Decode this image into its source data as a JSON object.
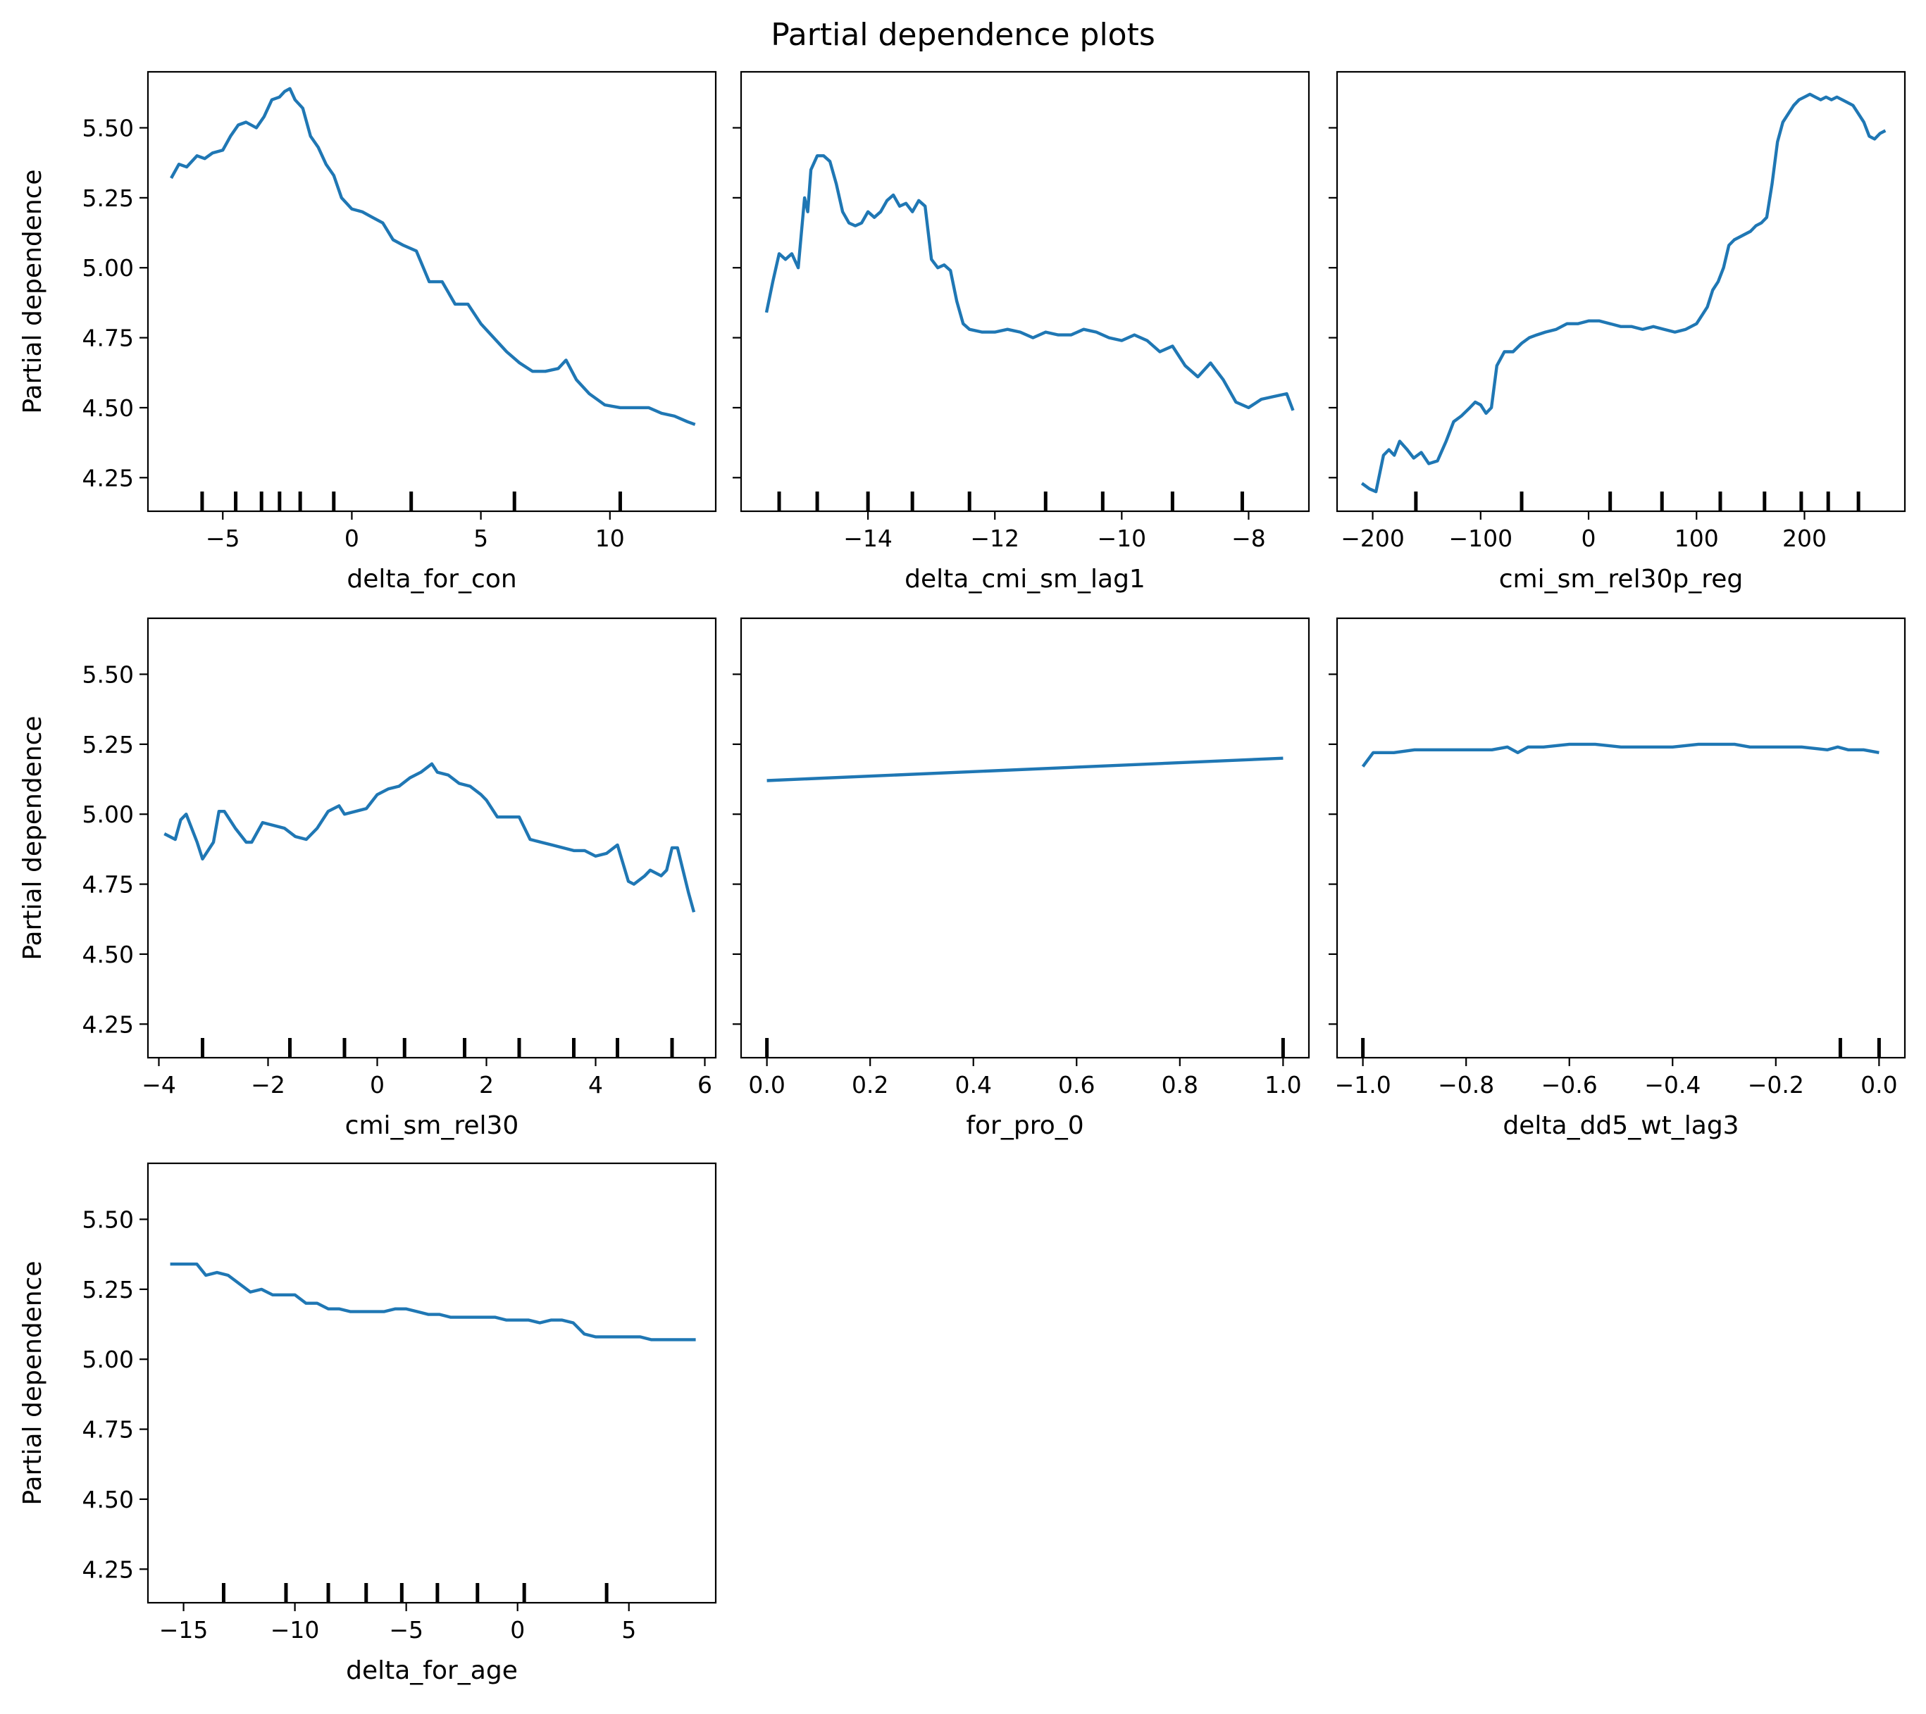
{
  "title": "Partial dependence plots",
  "colors": {
    "line": "#1f77b4",
    "axis": "#000000",
    "background": "#ffffff"
  },
  "chart_data": [
    {
      "type": "line",
      "xlabel": "delta_for_con",
      "ylabel": "Partial dependence",
      "xlim": [
        -7.9,
        14.1
      ],
      "ylim": [
        4.13,
        5.7
      ],
      "xticks": [
        -5,
        0,
        5,
        10
      ],
      "xtick_labels": [
        "−5",
        "0",
        "5",
        "10"
      ],
      "yticks": [
        4.25,
        4.5,
        4.75,
        5.0,
        5.25,
        5.5
      ],
      "ytick_labels": [
        "4.25",
        "4.50",
        "4.75",
        "5.00",
        "5.25",
        "5.50"
      ],
      "deciles": [
        -5.8,
        -4.5,
        -3.5,
        -2.8,
        -2.0,
        -0.7,
        2.3,
        6.3,
        10.4
      ],
      "x": [
        -7.0,
        -6.7,
        -6.4,
        -6.0,
        -5.7,
        -5.4,
        -5.0,
        -4.7,
        -4.4,
        -4.1,
        -3.7,
        -3.4,
        -3.1,
        -2.8,
        -2.6,
        -2.4,
        -2.2,
        -1.9,
        -1.6,
        -1.3,
        -1.0,
        -0.7,
        -0.4,
        0.0,
        0.4,
        0.8,
        1.2,
        1.6,
        2.0,
        2.5,
        3.0,
        3.5,
        4.0,
        4.5,
        5.0,
        5.5,
        6.0,
        6.5,
        7.0,
        7.5,
        8.0,
        8.3,
        8.7,
        9.2,
        9.8,
        10.4,
        11.0,
        11.5,
        12.0,
        12.5,
        13.0,
        13.3
      ],
      "y": [
        5.32,
        5.37,
        5.36,
        5.4,
        5.39,
        5.41,
        5.42,
        5.47,
        5.51,
        5.52,
        5.5,
        5.54,
        5.6,
        5.61,
        5.63,
        5.64,
        5.6,
        5.57,
        5.47,
        5.43,
        5.37,
        5.33,
        5.25,
        5.21,
        5.2,
        5.18,
        5.16,
        5.1,
        5.08,
        5.06,
        4.95,
        4.95,
        4.87,
        4.87,
        4.8,
        4.75,
        4.7,
        4.66,
        4.63,
        4.63,
        4.64,
        4.67,
        4.6,
        4.55,
        4.51,
        4.5,
        4.5,
        4.5,
        4.48,
        4.47,
        4.45,
        4.44
      ]
    },
    {
      "type": "line",
      "xlabel": "delta_cmi_sm_lag1",
      "ylabel": "",
      "xlim": [
        -16.0,
        -7.05
      ],
      "ylim": [
        4.13,
        5.7
      ],
      "xticks": [
        -14,
        -12,
        -10,
        -8
      ],
      "xtick_labels": [
        "−14",
        "−12",
        "−10",
        "−8"
      ],
      "yticks": [
        4.25,
        4.5,
        4.75,
        5.0,
        5.25,
        5.5
      ],
      "ytick_labels": [],
      "deciles": [
        -15.4,
        -14.8,
        -14.0,
        -13.3,
        -12.4,
        -11.2,
        -10.3,
        -9.2,
        -8.1
      ],
      "x": [
        -15.6,
        -15.5,
        -15.4,
        -15.3,
        -15.2,
        -15.1,
        -15.0,
        -14.95,
        -14.9,
        -14.8,
        -14.7,
        -14.6,
        -14.5,
        -14.4,
        -14.3,
        -14.2,
        -14.1,
        -14.0,
        -13.9,
        -13.8,
        -13.7,
        -13.6,
        -13.5,
        -13.4,
        -13.3,
        -13.2,
        -13.1,
        -13.0,
        -12.9,
        -12.8,
        -12.7,
        -12.6,
        -12.5,
        -12.4,
        -12.2,
        -12.0,
        -11.8,
        -11.6,
        -11.4,
        -11.2,
        -11.0,
        -10.8,
        -10.6,
        -10.4,
        -10.2,
        -10.0,
        -9.8,
        -9.6,
        -9.4,
        -9.2,
        -9.0,
        -8.8,
        -8.6,
        -8.4,
        -8.2,
        -8.0,
        -7.8,
        -7.6,
        -7.4,
        -7.3
      ],
      "y": [
        4.84,
        4.95,
        5.05,
        5.03,
        5.05,
        5.0,
        5.25,
        5.2,
        5.35,
        5.4,
        5.4,
        5.38,
        5.3,
        5.2,
        5.16,
        5.15,
        5.16,
        5.2,
        5.18,
        5.2,
        5.24,
        5.26,
        5.22,
        5.23,
        5.2,
        5.24,
        5.22,
        5.03,
        5.0,
        5.01,
        4.99,
        4.88,
        4.8,
        4.78,
        4.77,
        4.77,
        4.78,
        4.77,
        4.75,
        4.77,
        4.76,
        4.76,
        4.78,
        4.77,
        4.75,
        4.74,
        4.76,
        4.74,
        4.7,
        4.72,
        4.65,
        4.61,
        4.66,
        4.6,
        4.52,
        4.5,
        4.53,
        4.54,
        4.55,
        4.49
      ]
    },
    {
      "type": "line",
      "xlabel": "cmi_sm_rel30p_reg",
      "ylabel": "",
      "xlim": [
        -233,
        293
      ],
      "ylim": [
        4.13,
        5.7
      ],
      "xticks": [
        -200,
        -100,
        0,
        100,
        200
      ],
      "xtick_labels": [
        "−200",
        "−100",
        "0",
        "100",
        "200"
      ],
      "yticks": [
        4.25,
        4.5,
        4.75,
        5.0,
        5.25,
        5.5
      ],
      "ytick_labels": [],
      "deciles": [
        -160,
        -62,
        20,
        68,
        122,
        163,
        197,
        222,
        250
      ],
      "x": [
        -210,
        -203,
        -197,
        -190,
        -185,
        -180,
        -175,
        -168,
        -162,
        -155,
        -148,
        -140,
        -132,
        -125,
        -118,
        -110,
        -105,
        -100,
        -95,
        -90,
        -85,
        -78,
        -70,
        -62,
        -55,
        -48,
        -40,
        -30,
        -20,
        -10,
        0,
        10,
        20,
        30,
        40,
        50,
        60,
        70,
        80,
        90,
        100,
        110,
        115,
        120,
        125,
        130,
        135,
        140,
        145,
        150,
        155,
        160,
        165,
        170,
        175,
        180,
        185,
        190,
        195,
        200,
        205,
        210,
        215,
        220,
        225,
        230,
        235,
        240,
        245,
        250,
        255,
        260,
        265,
        270,
        275
      ],
      "y": [
        4.23,
        4.21,
        4.2,
        4.33,
        4.35,
        4.33,
        4.38,
        4.35,
        4.32,
        4.34,
        4.3,
        4.31,
        4.38,
        4.45,
        4.47,
        4.5,
        4.52,
        4.51,
        4.48,
        4.5,
        4.65,
        4.7,
        4.7,
        4.73,
        4.75,
        4.76,
        4.77,
        4.78,
        4.8,
        4.8,
        4.81,
        4.81,
        4.8,
        4.79,
        4.79,
        4.78,
        4.79,
        4.78,
        4.77,
        4.78,
        4.8,
        4.86,
        4.92,
        4.95,
        5.0,
        5.08,
        5.1,
        5.11,
        5.12,
        5.13,
        5.15,
        5.16,
        5.18,
        5.3,
        5.45,
        5.52,
        5.55,
        5.58,
        5.6,
        5.61,
        5.62,
        5.61,
        5.6,
        5.61,
        5.6,
        5.61,
        5.6,
        5.59,
        5.58,
        5.55,
        5.52,
        5.47,
        5.46,
        5.48,
        5.49
      ]
    },
    {
      "type": "line",
      "xlabel": "cmi_sm_rel30",
      "ylabel": "Partial dependence",
      "xlim": [
        -4.2,
        6.2
      ],
      "ylim": [
        4.13,
        5.7
      ],
      "xticks": [
        -4,
        -2,
        0,
        2,
        4,
        6
      ],
      "xtick_labels": [
        "−4",
        "−2",
        "0",
        "2",
        "4",
        "6"
      ],
      "yticks": [
        4.25,
        4.5,
        4.75,
        5.0,
        5.25,
        5.5
      ],
      "ytick_labels": [
        "4.25",
        "4.50",
        "4.75",
        "5.00",
        "5.25",
        "5.50"
      ],
      "deciles": [
        -3.2,
        -1.6,
        -0.6,
        0.5,
        1.6,
        2.6,
        3.6,
        4.4,
        5.4
      ],
      "x": [
        -3.9,
        -3.7,
        -3.6,
        -3.5,
        -3.3,
        -3.2,
        -3.0,
        -2.9,
        -2.8,
        -2.6,
        -2.4,
        -2.3,
        -2.1,
        -1.9,
        -1.7,
        -1.5,
        -1.3,
        -1.1,
        -0.9,
        -0.7,
        -0.6,
        -0.4,
        -0.2,
        0.0,
        0.2,
        0.4,
        0.6,
        0.8,
        1.0,
        1.1,
        1.3,
        1.5,
        1.7,
        1.9,
        2.0,
        2.2,
        2.4,
        2.6,
        2.8,
        3.0,
        3.2,
        3.4,
        3.6,
        3.8,
        4.0,
        4.2,
        4.4,
        4.6,
        4.7,
        4.9,
        5.0,
        5.2,
        5.3,
        5.4,
        5.5,
        5.6,
        5.7,
        5.8
      ],
      "y": [
        4.93,
        4.91,
        4.98,
        5.0,
        4.9,
        4.84,
        4.9,
        5.01,
        5.01,
        4.95,
        4.9,
        4.9,
        4.97,
        4.96,
        4.95,
        4.92,
        4.91,
        4.95,
        5.01,
        5.03,
        5.0,
        5.01,
        5.02,
        5.07,
        5.09,
        5.1,
        5.13,
        5.15,
        5.18,
        5.15,
        5.14,
        5.11,
        5.1,
        5.07,
        5.05,
        4.99,
        4.99,
        4.99,
        4.91,
        4.9,
        4.89,
        4.88,
        4.87,
        4.87,
        4.85,
        4.86,
        4.89,
        4.76,
        4.75,
        4.78,
        4.8,
        4.78,
        4.8,
        4.88,
        4.88,
        4.8,
        4.72,
        4.65
      ]
    },
    {
      "type": "line",
      "xlabel": "for_pro_0",
      "ylabel": "",
      "xlim": [
        -0.05,
        1.05
      ],
      "ylim": [
        4.13,
        5.7
      ],
      "xticks": [
        0.0,
        0.2,
        0.4,
        0.6,
        0.8,
        1.0
      ],
      "xtick_labels": [
        "0.0",
        "0.2",
        "0.4",
        "0.6",
        "0.8",
        "1.0"
      ],
      "yticks": [
        4.25,
        4.5,
        4.75,
        5.0,
        5.25,
        5.5
      ],
      "ytick_labels": [],
      "deciles": [
        0.0,
        1.0
      ],
      "x": [
        0.0,
        1.0
      ],
      "y": [
        5.12,
        5.2
      ]
    },
    {
      "type": "line",
      "xlabel": "delta_dd5_wt_lag3",
      "ylabel": "",
      "xlim": [
        -1.05,
        0.05
      ],
      "ylim": [
        4.13,
        5.7
      ],
      "xticks": [
        -1.0,
        -0.8,
        -0.6,
        -0.4,
        -0.2,
        0.0
      ],
      "xtick_labels": [
        "−1.0",
        "−0.8",
        "−0.6",
        "−0.4",
        "−0.2",
        "0.0"
      ],
      "yticks": [
        4.25,
        4.5,
        4.75,
        5.0,
        5.25,
        5.5
      ],
      "ytick_labels": [],
      "deciles": [
        -1.0,
        -0.075,
        0.0
      ],
      "x": [
        -1.0,
        -0.98,
        -0.96,
        -0.94,
        -0.9,
        -0.85,
        -0.8,
        -0.75,
        -0.72,
        -0.7,
        -0.68,
        -0.65,
        -0.6,
        -0.55,
        -0.5,
        -0.45,
        -0.4,
        -0.35,
        -0.3,
        -0.28,
        -0.25,
        -0.2,
        -0.15,
        -0.1,
        -0.08,
        -0.06,
        -0.03,
        0.0
      ],
      "y": [
        5.17,
        5.22,
        5.22,
        5.22,
        5.23,
        5.23,
        5.23,
        5.23,
        5.24,
        5.22,
        5.24,
        5.24,
        5.25,
        5.25,
        5.24,
        5.24,
        5.24,
        5.25,
        5.25,
        5.25,
        5.24,
        5.24,
        5.24,
        5.23,
        5.24,
        5.23,
        5.23,
        5.22
      ]
    },
    {
      "type": "line",
      "xlabel": "delta_for_age",
      "ylabel": "Partial dependence",
      "xlim": [
        -16.6,
        8.9
      ],
      "ylim": [
        4.13,
        5.7
      ],
      "xticks": [
        -15,
        -10,
        -5,
        0,
        5
      ],
      "xtick_labels": [
        "−15",
        "−10",
        "−5",
        "0",
        "5"
      ],
      "yticks": [
        4.25,
        4.5,
        4.75,
        5.0,
        5.25,
        5.5
      ],
      "ytick_labels": [
        "4.25",
        "4.50",
        "4.75",
        "5.00",
        "5.25",
        "5.50"
      ],
      "deciles": [
        -13.2,
        -10.4,
        -8.5,
        -6.8,
        -5.2,
        -3.6,
        -1.8,
        0.3,
        4.0
      ],
      "x": [
        -15.6,
        -15.0,
        -14.4,
        -14.0,
        -13.5,
        -13.0,
        -12.5,
        -12.0,
        -11.5,
        -11.0,
        -10.5,
        -10.0,
        -9.5,
        -9.0,
        -8.5,
        -8.0,
        -7.5,
        -7.0,
        -6.5,
        -6.0,
        -5.5,
        -5.0,
        -4.5,
        -4.0,
        -3.5,
        -3.0,
        -2.5,
        -2.0,
        -1.5,
        -1.0,
        -0.5,
        0.0,
        0.5,
        1.0,
        1.5,
        2.0,
        2.5,
        3.0,
        3.5,
        4.0,
        4.5,
        5.0,
        5.5,
        6.0,
        6.5,
        7.0,
        7.5,
        8.0
      ],
      "y": [
        5.34,
        5.34,
        5.34,
        5.3,
        5.31,
        5.3,
        5.27,
        5.24,
        5.25,
        5.23,
        5.23,
        5.23,
        5.2,
        5.2,
        5.18,
        5.18,
        5.17,
        5.17,
        5.17,
        5.17,
        5.18,
        5.18,
        5.17,
        5.16,
        5.16,
        5.15,
        5.15,
        5.15,
        5.15,
        5.15,
        5.14,
        5.14,
        5.14,
        5.13,
        5.14,
        5.14,
        5.13,
        5.09,
        5.08,
        5.08,
        5.08,
        5.08,
        5.08,
        5.07,
        5.07,
        5.07,
        5.07,
        5.07
      ]
    }
  ]
}
